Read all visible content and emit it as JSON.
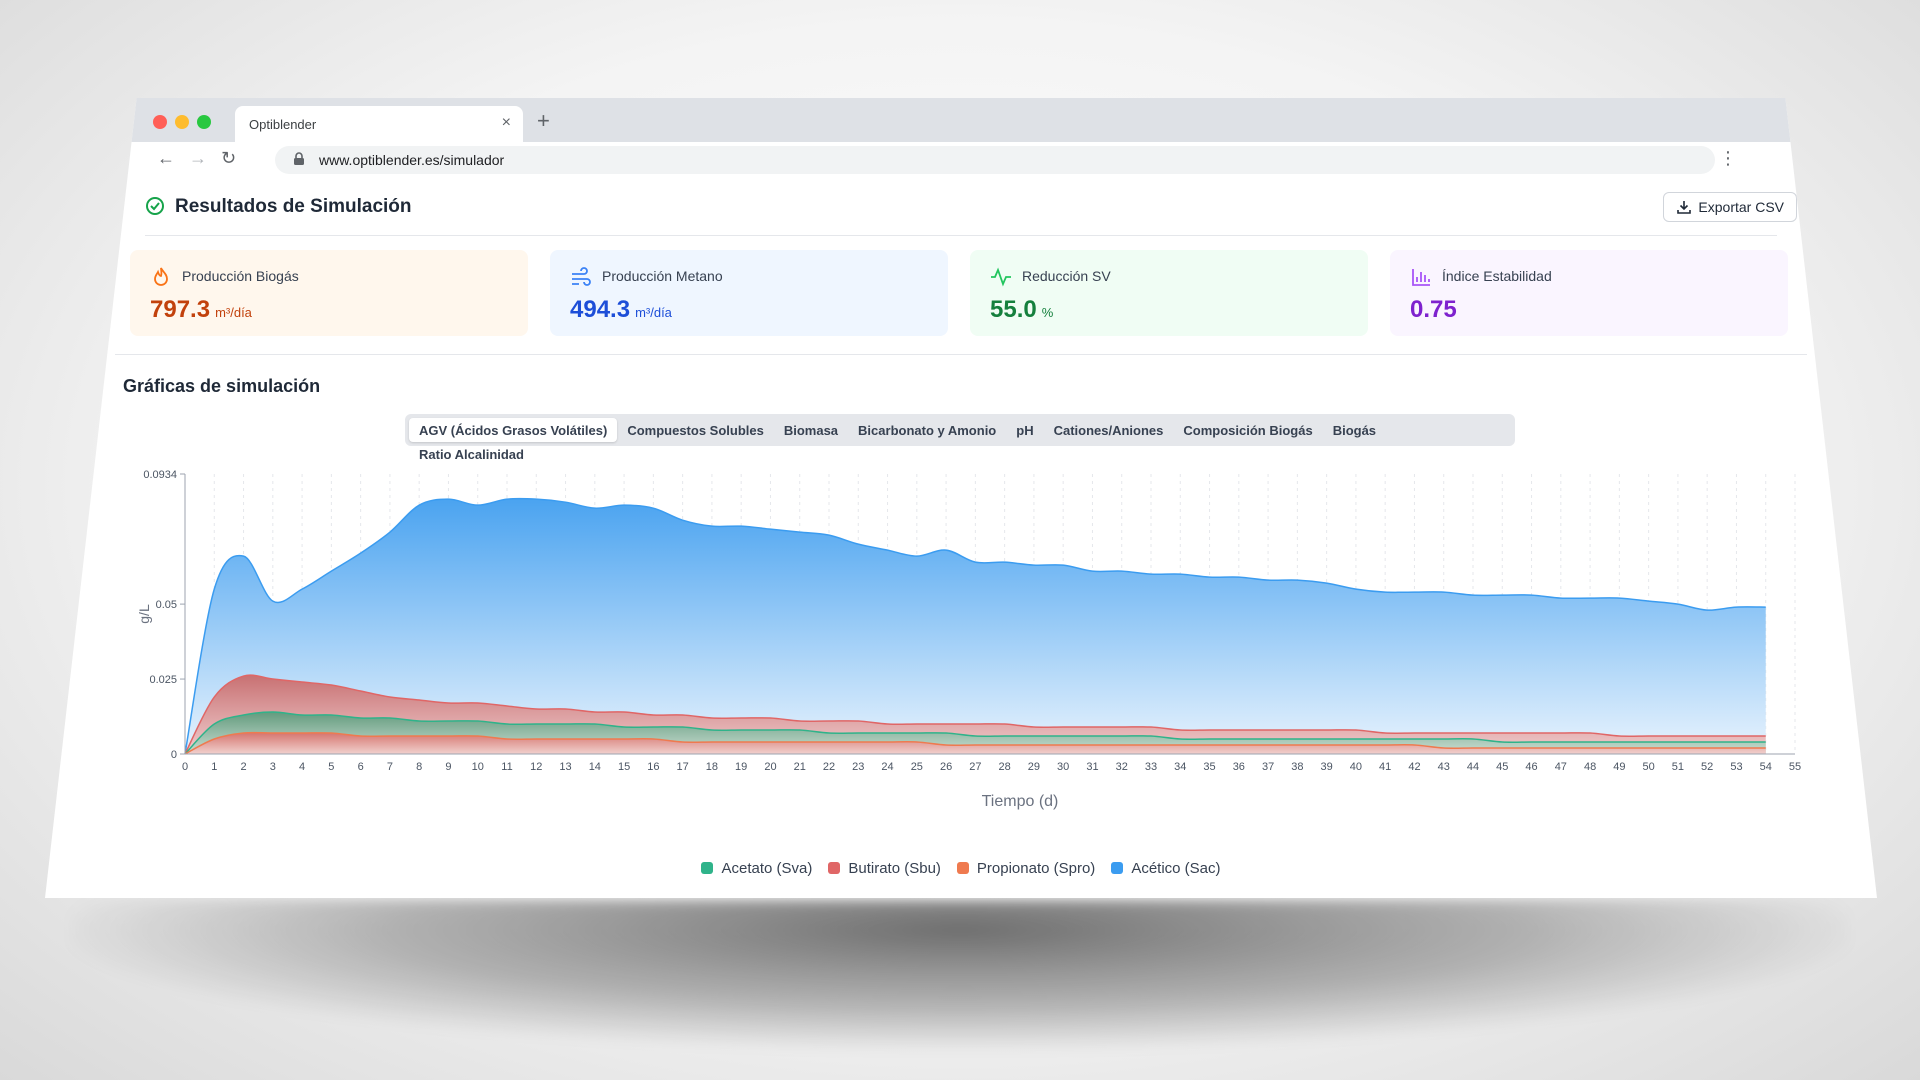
{
  "browser": {
    "tab_title": "Optiblender",
    "tab_close": "×",
    "new_tab": "+",
    "url": "www.optiblender.es/simulador",
    "back": "←",
    "forward": "→",
    "reload": "↻",
    "menu": "⋮"
  },
  "header": {
    "title": "Resultados de Simulación",
    "export_label": "Exportar CSV"
  },
  "cards": [
    {
      "label": "Producción Biogás",
      "value": "797.3",
      "unit": "m³/día",
      "accent": "#c2410c",
      "bg": "#fff7ed",
      "icon": "flame-icon"
    },
    {
      "label": "Producción Metano",
      "value": "494.3",
      "unit": "m³/día",
      "accent": "#1d4ed8",
      "bg": "#eff6ff",
      "icon": "wind-icon"
    },
    {
      "label": "Reducción SV",
      "value": "55.0",
      "unit": "%",
      "accent": "#15803d",
      "bg": "#f0fdf4",
      "icon": "activity-icon"
    },
    {
      "label": "Índice Estabilidad",
      "value": "0.75",
      "unit": "",
      "accent": "#7e22ce",
      "bg": "#faf5ff",
      "icon": "bar-chart-icon"
    }
  ],
  "section_title": "Gráficas de simulación",
  "chart_tabs": [
    "AGV (Ácidos Grasos Volátiles)",
    "Compuestos Solubles",
    "Biomasa",
    "Bicarbonato y Amonio",
    "pH",
    "Cationes/Aniones",
    "Composición Biogás",
    "Biogás",
    "Ratio Alcalinidad"
  ],
  "active_chart_tab": 0,
  "chart_data": {
    "type": "area",
    "xlabel": "Tiempo (d)",
    "ylabel": "g/L",
    "xlim": [
      0,
      55
    ],
    "ylim": [
      0,
      0.0934
    ],
    "y_ticks": [
      "0",
      "0.025",
      "0.05",
      "0.0934"
    ],
    "y_tick_values": [
      0,
      0.025,
      0.05,
      0.0934
    ],
    "grid": "vertical dashed",
    "legend": "bottom",
    "x": [
      0,
      1,
      2,
      3,
      4,
      5,
      6,
      7,
      8,
      9,
      10,
      11,
      12,
      13,
      14,
      15,
      16,
      17,
      18,
      19,
      20,
      21,
      22,
      23,
      24,
      25,
      26,
      27,
      28,
      29,
      30,
      31,
      32,
      33,
      34,
      35,
      36,
      37,
      38,
      39,
      40,
      41,
      42,
      43,
      44,
      45,
      46,
      47,
      48,
      49,
      50,
      51,
      52,
      53,
      54
    ],
    "series": [
      {
        "name": "Acético (Sac)",
        "color": "#3b9cf0",
        "values": [
          0,
          0.055,
          0.066,
          0.051,
          0.055,
          0.061,
          0.067,
          0.074,
          0.083,
          0.085,
          0.083,
          0.085,
          0.085,
          0.084,
          0.082,
          0.083,
          0.082,
          0.078,
          0.076,
          0.076,
          0.075,
          0.074,
          0.073,
          0.07,
          0.068,
          0.066,
          0.068,
          0.064,
          0.064,
          0.063,
          0.063,
          0.061,
          0.061,
          0.06,
          0.06,
          0.059,
          0.059,
          0.058,
          0.058,
          0.057,
          0.055,
          0.054,
          0.054,
          0.054,
          0.053,
          0.053,
          0.053,
          0.052,
          0.052,
          0.052,
          0.051,
          0.05,
          0.048,
          0.049,
          0.049
        ]
      },
      {
        "name": "Butirato (Sbu)",
        "color": "#e06666",
        "values": [
          0,
          0.019,
          0.026,
          0.025,
          0.024,
          0.023,
          0.021,
          0.019,
          0.018,
          0.017,
          0.017,
          0.016,
          0.015,
          0.015,
          0.014,
          0.014,
          0.013,
          0.013,
          0.012,
          0.012,
          0.012,
          0.011,
          0.011,
          0.011,
          0.01,
          0.01,
          0.01,
          0.01,
          0.01,
          0.009,
          0.009,
          0.009,
          0.009,
          0.009,
          0.008,
          0.008,
          0.008,
          0.008,
          0.008,
          0.008,
          0.008,
          0.007,
          0.007,
          0.007,
          0.007,
          0.007,
          0.007,
          0.007,
          0.007,
          0.006,
          0.006,
          0.006,
          0.006,
          0.006,
          0.006
        ]
      },
      {
        "name": "Acetato (Sva)",
        "color": "#2fb38a",
        "values": [
          0,
          0.01,
          0.013,
          0.014,
          0.013,
          0.013,
          0.012,
          0.012,
          0.011,
          0.011,
          0.011,
          0.01,
          0.01,
          0.01,
          0.01,
          0.009,
          0.009,
          0.009,
          0.008,
          0.008,
          0.008,
          0.008,
          0.007,
          0.007,
          0.007,
          0.007,
          0.007,
          0.006,
          0.006,
          0.006,
          0.006,
          0.006,
          0.006,
          0.006,
          0.005,
          0.005,
          0.005,
          0.005,
          0.005,
          0.005,
          0.005,
          0.005,
          0.005,
          0.005,
          0.005,
          0.004,
          0.004,
          0.004,
          0.004,
          0.004,
          0.004,
          0.004,
          0.004,
          0.004,
          0.004
        ]
      },
      {
        "name": "Propionato (Spro)",
        "color": "#ef7a4f",
        "values": [
          0,
          0.005,
          0.007,
          0.007,
          0.007,
          0.007,
          0.006,
          0.006,
          0.006,
          0.006,
          0.006,
          0.005,
          0.005,
          0.005,
          0.005,
          0.005,
          0.005,
          0.004,
          0.004,
          0.004,
          0.004,
          0.004,
          0.004,
          0.004,
          0.004,
          0.004,
          0.003,
          0.003,
          0.003,
          0.003,
          0.003,
          0.003,
          0.003,
          0.003,
          0.003,
          0.003,
          0.003,
          0.003,
          0.003,
          0.003,
          0.003,
          0.003,
          0.003,
          0.002,
          0.002,
          0.002,
          0.002,
          0.002,
          0.002,
          0.002,
          0.002,
          0.002,
          0.002,
          0.002,
          0.002
        ]
      }
    ],
    "legend_order": [
      "Acetato (Sva)",
      "Butirato (Sbu)",
      "Propionato (Spro)",
      "Acético (Sac)"
    ],
    "legend_colors": [
      "#2fb38a",
      "#e06666",
      "#ef7a4f",
      "#3b9cf0"
    ]
  }
}
